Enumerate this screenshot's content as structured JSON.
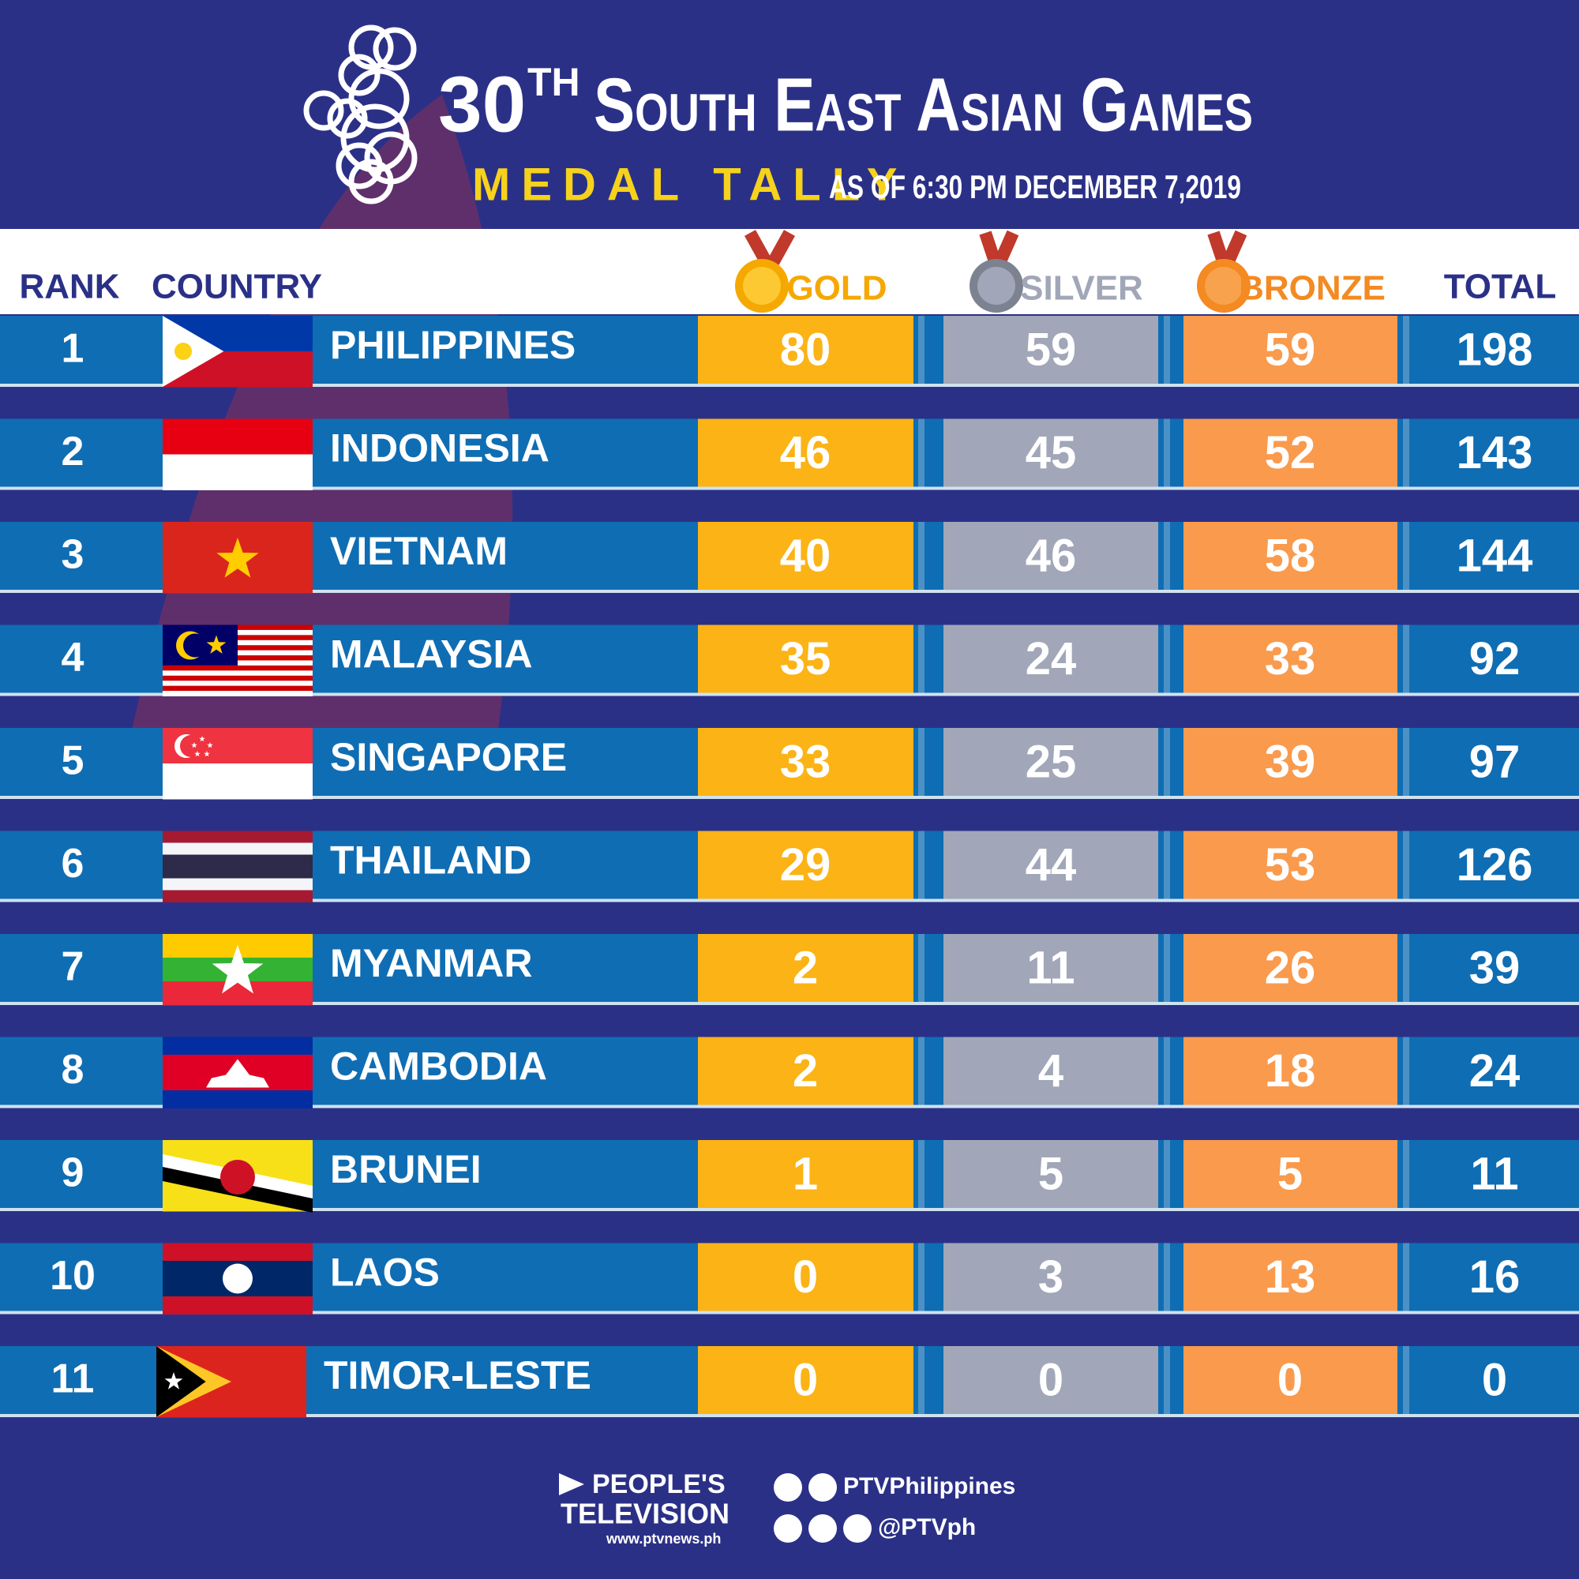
{
  "header": {
    "title_number": "30",
    "title_suffix": "TH",
    "title": "South East Asian Games",
    "subtitle": "MEDAL TALLY",
    "date": "AS OF 6:30 PM DECEMBER 7,2019"
  },
  "table": {
    "columns": [
      "RANK",
      "COUNTRY",
      "GOLD",
      "SILVER",
      "BRONZE",
      "TOTAL"
    ],
    "rows": [
      [
        1,
        "PHILIPPINES",
        80,
        59,
        59,
        198
      ],
      [
        2,
        "INDONESIA",
        46,
        45,
        52,
        143
      ],
      [
        3,
        "VIETNAM",
        40,
        46,
        58,
        144
      ],
      [
        4,
        "MALAYSIA",
        35,
        24,
        33,
        92
      ],
      [
        5,
        "SINGAPORE",
        33,
        25,
        39,
        97
      ],
      [
        6,
        "THAILAND",
        29,
        44,
        53,
        126
      ],
      [
        7,
        "MYANMAR",
        2,
        11,
        26,
        39
      ],
      [
        8,
        "CAMBODIA",
        2,
        4,
        18,
        24
      ],
      [
        9,
        "BRUNEI",
        1,
        5,
        5,
        11
      ],
      [
        10,
        "LAOS",
        0,
        3,
        13,
        16
      ],
      [
        11,
        "TIMOR-LESTE",
        0,
        0,
        0,
        0
      ]
    ]
  },
  "footer": {
    "brand_line1": "PEOPLE'S",
    "brand_line2": "TELEVISION",
    "website": "www.ptvnews.ph",
    "handle1": "PTVPhilippines",
    "handle2": "@PTVph"
  }
}
